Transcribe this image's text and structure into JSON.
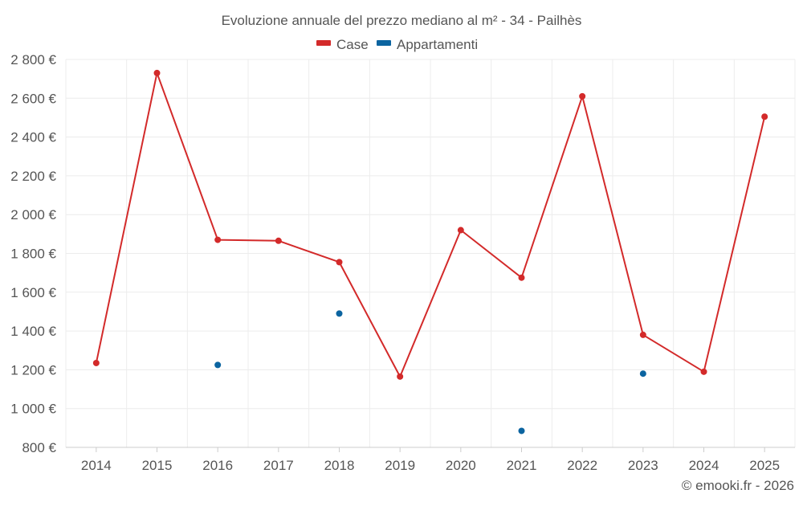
{
  "chart_data": {
    "type": "line",
    "title": "Evoluzione annuale del prezzo mediano al m² - 34 - Pailhès",
    "categories": [
      "2014",
      "2015",
      "2016",
      "2017",
      "2018",
      "2019",
      "2020",
      "2021",
      "2022",
      "2023",
      "2024",
      "2025"
    ],
    "y_ticks": [
      "800 €",
      "1 000 €",
      "1 200 €",
      "1 400 €",
      "1 600 €",
      "1 800 €",
      "2 000 €",
      "2 200 €",
      "2 400 €",
      "2 600 €",
      "2 800 €"
    ],
    "ylim": [
      800,
      2800
    ],
    "grid": true,
    "legend_position": "top-center",
    "series": [
      {
        "name": "Case",
        "color": "#d32a2a",
        "connected": true,
        "values": [
          1235,
          2730,
          1870,
          1865,
          1755,
          1165,
          1920,
          1675,
          2610,
          1380,
          1190,
          2505
        ]
      },
      {
        "name": "Appartamenti",
        "color": "#0b64a0",
        "connected": false,
        "values": [
          null,
          null,
          1225,
          null,
          1490,
          null,
          null,
          885,
          null,
          1180,
          null,
          null
        ]
      }
    ],
    "credit": "© emooki.fr - 2026"
  }
}
